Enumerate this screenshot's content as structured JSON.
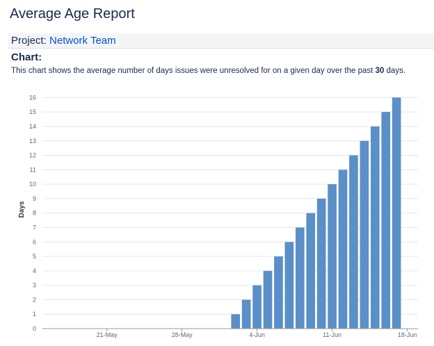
{
  "header": {
    "title": "Average Age Report"
  },
  "project": {
    "label": "Project:",
    "name": "Network Team"
  },
  "chart_section": {
    "heading": "Chart:",
    "description_before": "This chart shows the average number of days issues were unresolved for on a given day over the past ",
    "description_days": "30",
    "description_after": " days."
  },
  "colors": {
    "bar": "#5b8fc7",
    "grid": "#e6e6e6",
    "link": "#0052cc"
  },
  "chart_data": {
    "type": "bar",
    "title": "",
    "xlabel": "",
    "ylabel": "Days",
    "ylim": [
      0,
      16.5
    ],
    "y_ticks": [
      0,
      1,
      2,
      3,
      4,
      5,
      6,
      7,
      8,
      9,
      10,
      11,
      12,
      13,
      14,
      15,
      16
    ],
    "x_ticks": [
      "21-May",
      "28-May",
      "4-Jun",
      "11-Jun",
      "18-Jun"
    ],
    "x_range": [
      "2024-05-15",
      "2024-06-19"
    ],
    "x_tick_dates": [
      "2024-05-21",
      "2024-05-28",
      "2024-06-04",
      "2024-06-11",
      "2024-06-18"
    ],
    "categories": [
      "2024-06-02",
      "2024-06-03",
      "2024-06-04",
      "2024-06-05",
      "2024-06-06",
      "2024-06-07",
      "2024-06-08",
      "2024-06-09",
      "2024-06-10",
      "2024-06-11",
      "2024-06-12",
      "2024-06-13",
      "2024-06-14",
      "2024-06-15",
      "2024-06-16",
      "2024-06-17"
    ],
    "values": [
      1,
      2,
      3,
      4,
      5,
      6,
      7,
      8,
      9,
      10,
      11,
      12,
      13,
      14,
      15,
      16
    ],
    "grid": true
  }
}
